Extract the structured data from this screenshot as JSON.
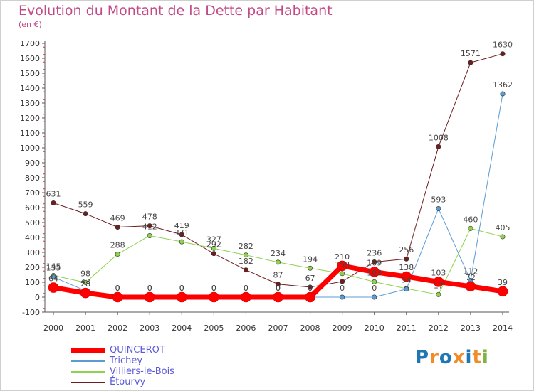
{
  "header": {
    "title": "Evolution du Montant de la Dette par Habitant",
    "unit": "(en €)"
  },
  "logo": {
    "text": "Proxiti",
    "colors": [
      "#1f77b4",
      "#f28c28",
      "#1f77b4",
      "#f28c28",
      "#1f77b4",
      "#f28c28",
      "#7cb342"
    ]
  },
  "chart_data": {
    "type": "line",
    "title": "Evolution du Montant de la Dette par Habitant",
    "subtitle": "(en €)",
    "x": [
      "2000",
      "2001",
      "2002",
      "2003",
      "2004",
      "2005",
      "2006",
      "2007",
      "2008",
      "2009",
      "2010",
      "2011",
      "2012",
      "2013",
      "2014"
    ],
    "ylim": [
      -100,
      1700
    ],
    "yticks": [
      -100,
      0,
      100,
      200,
      300,
      400,
      500,
      600,
      700,
      800,
      900,
      1000,
      1100,
      1200,
      1300,
      1400,
      1500,
      1600,
      1700
    ],
    "grid": false,
    "legend": "bottom-left",
    "series": [
      {
        "name": "QUINCEROT",
        "color": "#ff0000",
        "width": 7,
        "values": [
          64,
          28,
          0,
          0,
          0,
          0,
          0,
          0,
          0,
          210,
          169,
          138,
          103,
          72,
          39
        ],
        "labels": [
          "64",
          "28",
          "0",
          "0",
          "0",
          "0",
          "0",
          "0",
          "0",
          "",
          "",
          "",
          "",
          "",
          ""
        ]
      },
      {
        "name": "Trichey",
        "color": "#5b9bd5",
        "width": 1,
        "values": [
          135,
          43,
          0,
          0,
          0,
          0,
          0,
          0,
          0,
          0,
          0,
          54,
          593,
          112,
          1362
        ],
        "labels": [
          "135",
          "43",
          "0",
          "0",
          "0",
          "0",
          "0",
          "0",
          "0",
          "0",
          "0",
          "54",
          "593",
          "112",
          "1362"
        ]
      },
      {
        "name": "Villiers-le-Bois",
        "color": "#8fd14f",
        "width": 1,
        "values": [
          145,
          98,
          288,
          412,
          371,
          327,
          282,
          234,
          194,
          158,
          103,
          57,
          17,
          460,
          405
        ],
        "labels": [
          "145",
          "",
          "288",
          "412",
          "371",
          "",
          "282",
          "234",
          "194",
          "158",
          "103",
          "",
          "17",
          "460",
          "405"
        ]
      },
      {
        "name": "Étourvy",
        "color": "#6e1e1e",
        "width": 1,
        "values": [
          631,
          559,
          469,
          478,
          419,
          292,
          182,
          87,
          67,
          105,
          236,
          256,
          1008,
          1571,
          1630
        ],
        "labels": [
          "631",
          "559",
          "469",
          "478",
          "419",
          "292",
          "182",
          "87",
          "67",
          "",
          "236",
          "256",
          "1008",
          "1571",
          "1630"
        ]
      }
    ],
    "extra_labels": [
      "98",
      "327",
      "210",
      "169",
      "138",
      "103",
      "72",
      "39"
    ]
  }
}
